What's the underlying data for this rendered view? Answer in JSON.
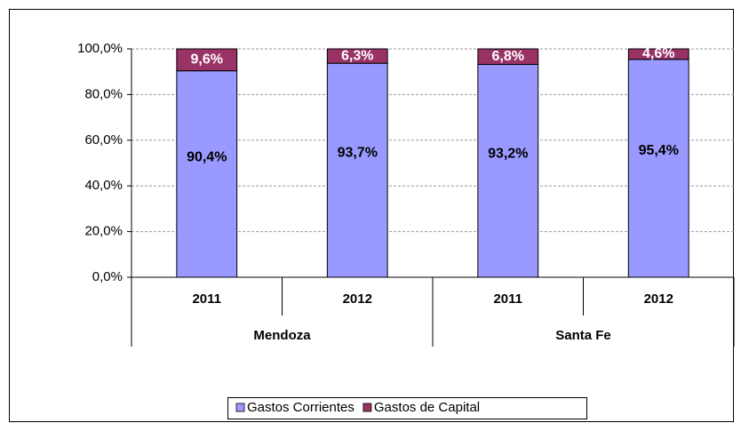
{
  "chart_data": {
    "type": "stacked_bar",
    "categories": [
      "2011",
      "2012",
      "2011",
      "2012"
    ],
    "groups": [
      "Mendoza",
      "Santa Fe"
    ],
    "series": [
      {
        "name": "Gastos Corrientes",
        "color": "#9999ff",
        "values": [
          90.4,
          93.7,
          93.2,
          95.4
        ],
        "value_labels": [
          "90,4%",
          "93,7%",
          "93,2%",
          "95,4%"
        ]
      },
      {
        "name": "Gastos de Capital",
        "color": "#993366",
        "values": [
          9.6,
          6.3,
          6.8,
          4.6
        ],
        "value_labels": [
          "9,6%",
          "6,3%",
          "6,8%",
          "4,6%"
        ]
      }
    ],
    "ylim": [
      0,
      100
    ],
    "yticks": [
      {
        "value": 0,
        "label": "0,0%"
      },
      {
        "value": 20,
        "label": "20,0%"
      },
      {
        "value": 40,
        "label": "40,0%"
      },
      {
        "value": 60,
        "label": "60,0%"
      },
      {
        "value": 80,
        "label": "80,0%"
      },
      {
        "value": 100,
        "label": "100,0%"
      }
    ],
    "grid": true,
    "legend": "bottom"
  }
}
